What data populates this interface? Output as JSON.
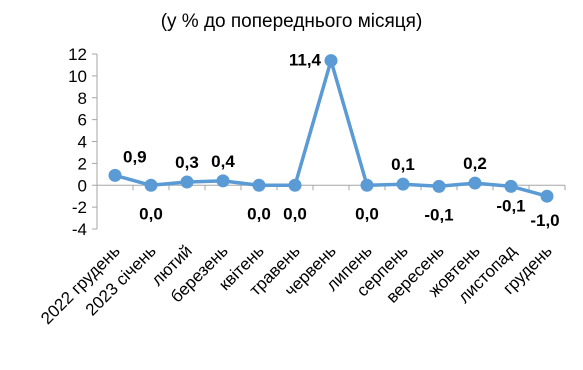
{
  "chart_data": {
    "type": "line",
    "title": "",
    "subtitle": "(у % до попереднього місяця)",
    "categories": [
      "2022 грудень",
      "2023 січень",
      "лютий",
      "березень",
      "квітень",
      "травень",
      "червень",
      "липень",
      "серпень",
      "вересень",
      "жовтень",
      "листопад",
      "грудень"
    ],
    "values": [
      0.9,
      0.0,
      0.3,
      0.4,
      0.0,
      0.0,
      11.4,
      0.0,
      0.1,
      -0.1,
      0.2,
      -0.1,
      -1.0
    ],
    "data_labels": [
      "0,9",
      "0,0",
      "0,3",
      "0,4",
      "0,0",
      "0,0",
      "11,4",
      "0,0",
      "0,1",
      "-0,1",
      "0,2",
      "-0,1",
      "-1,0"
    ],
    "y_ticks": [
      "-4",
      "-2",
      "0",
      "2",
      "4",
      "6",
      "8",
      "10",
      "12"
    ],
    "ylim": [
      -4,
      12
    ],
    "xlabel": "",
    "ylabel": "",
    "grid": false,
    "legend": "none",
    "colors": {
      "series": "#5B9BD5",
      "axis": "#A6A6A6",
      "text": "#000000"
    }
  }
}
